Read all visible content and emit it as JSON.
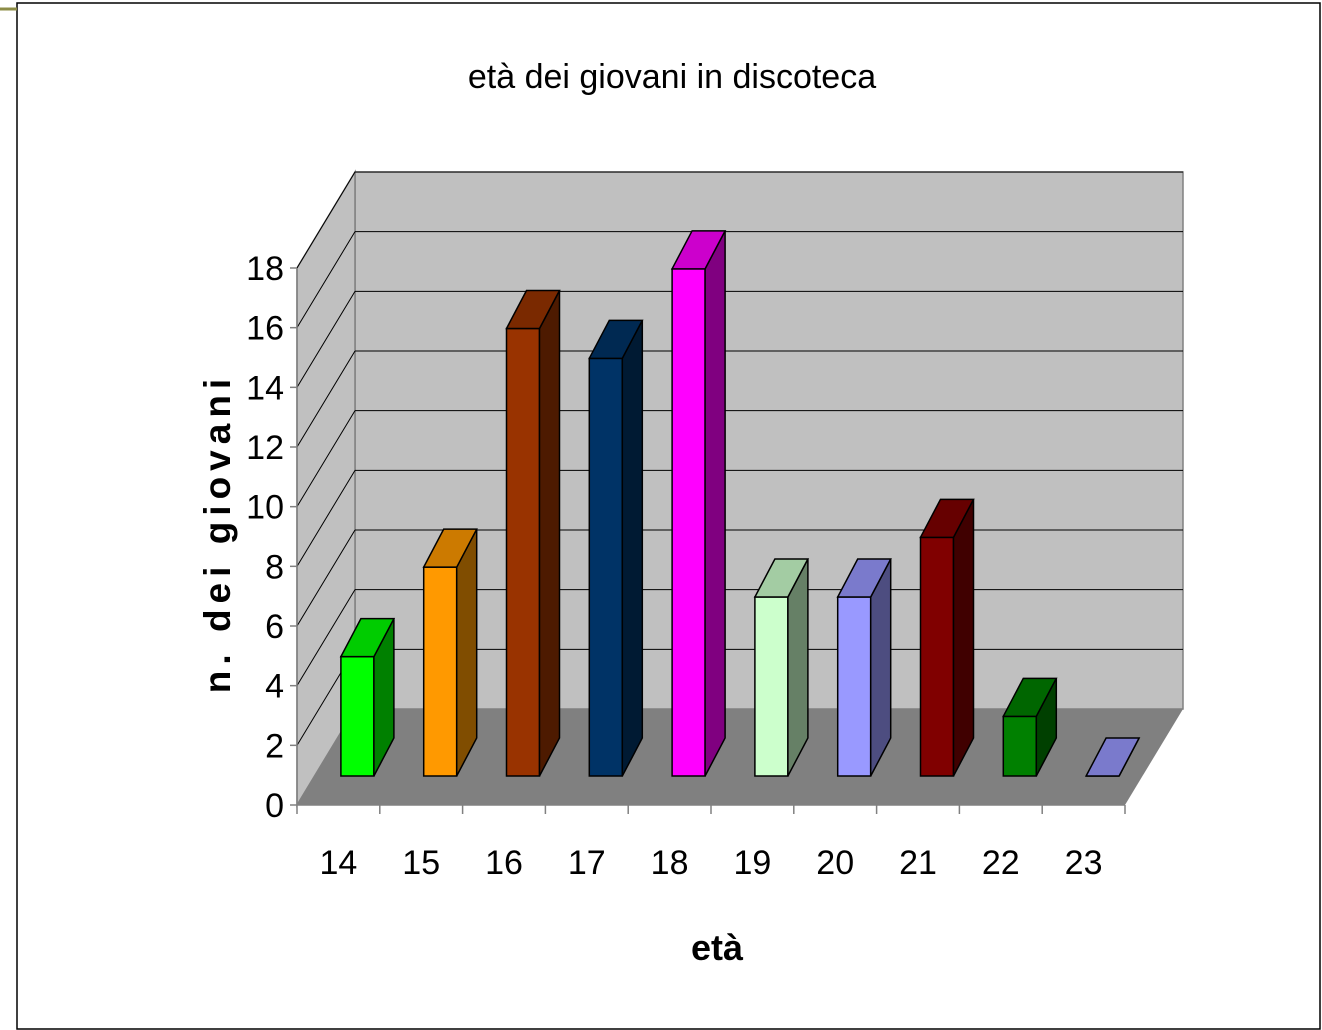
{
  "chart_data": {
    "type": "bar",
    "title": "età dei giovani in discoteca",
    "xlabel": "età",
    "ylabel": "n. dei giovani",
    "categories": [
      "14",
      "15",
      "16",
      "17",
      "18",
      "19",
      "20",
      "21",
      "22",
      "23"
    ],
    "values": [
      4,
      7,
      15,
      14,
      17,
      6,
      6,
      8,
      2,
      0
    ],
    "ylim": [
      0,
      18
    ],
    "yticks": [
      "0",
      "2",
      "4",
      "6",
      "8",
      "10",
      "12",
      "14",
      "16",
      "18"
    ],
    "grid": true,
    "legend": "none",
    "colors": [
      "#00ff00",
      "#ff9900",
      "#993300",
      "#003366",
      "#ff00ff",
      "#ccffcc",
      "#9999ff",
      "#800000",
      "#008000",
      "#9999ff"
    ],
    "wall_color": "#c0c0c0",
    "floor_color": "#808080"
  }
}
